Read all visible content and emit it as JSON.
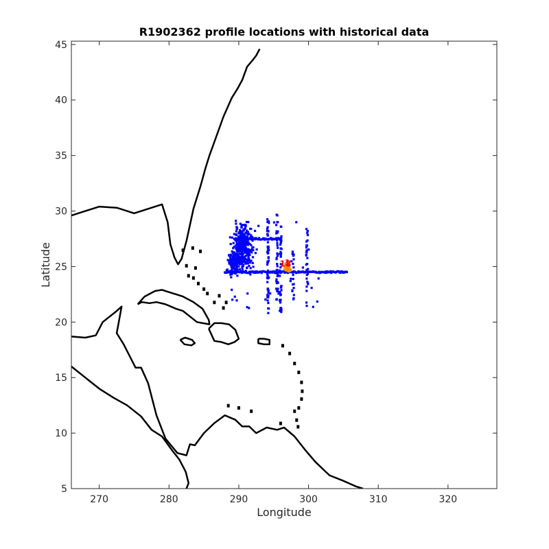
{
  "chart_data": {
    "type": "scatter",
    "title": "R1902362 profile locations with historical data",
    "xlabel": "Longitude",
    "ylabel": "Latitude",
    "xlim": [
      266,
      327
    ],
    "ylim": [
      5,
      45.3
    ],
    "xticks": [
      270,
      280,
      290,
      300,
      310,
      320
    ],
    "yticks": [
      5,
      10,
      15,
      20,
      25,
      30,
      35,
      40,
      45
    ],
    "grid": false,
    "colors": {
      "historical": "#0000ff",
      "float_profiles": "#ff8c00",
      "profile_labels": "#ff0000",
      "coastline": "#000000"
    },
    "profile_labels": [
      {
        "text": "18",
        "x": 296.7,
        "y": 25.0
      },
      {
        "text": "1",
        "x": 297.0,
        "y": 25.1
      }
    ],
    "float_profiles": {
      "x": [
        296.8,
        297.0,
        297.2,
        296.9
      ],
      "y": [
        24.8,
        25.0,
        24.7,
        25.2
      ]
    },
    "historical_series": [
      {
        "kind": "cluster",
        "cx": 290.6,
        "cy": 26.8,
        "sx": 1.0,
        "sy": 1.0,
        "n": 320
      },
      {
        "kind": "cluster",
        "cx": 289.4,
        "cy": 25.3,
        "sx": 0.7,
        "sy": 0.6,
        "n": 120
      },
      {
        "kind": "hline",
        "y": 24.5,
        "x0": 288.0,
        "x1": 305.5,
        "n": 150
      },
      {
        "kind": "hline",
        "y": 27.5,
        "x0": 290.0,
        "x1": 296.0,
        "n": 40
      },
      {
        "kind": "vline",
        "x": 294.2,
        "y0": 20.8,
        "y1": 29.5,
        "n": 60
      },
      {
        "kind": "vline",
        "x": 295.5,
        "y0": 22.0,
        "y1": 29.7,
        "n": 40
      },
      {
        "kind": "vline",
        "x": 296.0,
        "y0": 20.7,
        "y1": 29.0,
        "n": 40
      },
      {
        "kind": "vline",
        "x": 299.8,
        "y0": 21.2,
        "y1": 28.6,
        "n": 30
      },
      {
        "kind": "vline",
        "x": 297.8,
        "y0": 22.0,
        "y1": 26.5,
        "n": 20
      },
      {
        "kind": "scatter",
        "x0": 288.0,
        "x1": 302.0,
        "y0": 21.0,
        "y1": 29.0,
        "n": 30
      }
    ],
    "coastline": [
      {
        "name": "north-america-east",
        "lon": [
          266,
          268.5,
          270,
          272.5,
          275,
          277,
          279,
          279.8,
          280.2,
          280.8,
          281.3,
          281.8,
          282.5,
          283.5,
          284.5,
          285.2,
          285.8,
          286.6,
          287.8,
          289,
          289.8,
          290.5,
          291.2,
          292,
          292.5,
          293
        ],
        "lat": [
          29.6,
          30.1,
          30.4,
          30.3,
          29.8,
          30.2,
          30.6,
          29,
          27,
          25.8,
          25.2,
          25.7,
          27.3,
          30.2,
          32.2,
          33.8,
          35.0,
          36.4,
          38.5,
          40.2,
          41.0,
          41.8,
          43.0,
          43.6,
          44.0,
          44.6
        ]
      },
      {
        "name": "cuba",
        "lon": [
          275.5,
          276.5,
          278,
          279,
          280.5,
          282,
          283.5,
          284.8,
          285.7,
          285.8,
          284,
          283,
          282,
          281,
          279.5,
          278.2,
          277.2,
          276.1,
          275.5
        ],
        "lat": [
          21.6,
          22.3,
          22.8,
          22.9,
          22.6,
          22.3,
          21.8,
          21.2,
          20.2,
          19.8,
          20.0,
          20.5,
          21.0,
          21.2,
          21.6,
          21.8,
          21.7,
          21.8,
          21.6
        ]
      },
      {
        "name": "hispaniola",
        "lon": [
          285.7,
          286.5,
          287.5,
          288.6,
          289.5,
          290.0,
          289.4,
          288.5,
          287.5,
          286.5,
          285.7
        ],
        "lat": [
          19.4,
          19.9,
          19.9,
          19.8,
          19.3,
          18.5,
          18.2,
          18.0,
          18.2,
          18.3,
          19.4
        ]
      },
      {
        "name": "jamaica",
        "lon": [
          281.6,
          282.3,
          283.3,
          283.7,
          283.2,
          282.2,
          281.6
        ],
        "lat": [
          18.4,
          18.6,
          18.4,
          18.1,
          17.9,
          18.0,
          18.4
        ]
      },
      {
        "name": "puerto-rico",
        "lon": [
          292.8,
          293.6,
          294.4,
          294.4,
          293.6,
          292.8,
          292.8
        ],
        "lat": [
          18.5,
          18.5,
          18.4,
          18.0,
          18.0,
          18.1,
          18.5
        ]
      },
      {
        "name": "central-america-south-america",
        "lon": [
          266,
          268,
          269.5,
          270.5,
          272.5,
          273.2,
          272.5,
          273.5,
          275.2,
          276.0,
          277.0,
          278.2,
          279.5,
          281.2,
          282.5,
          283.0,
          283.7,
          285,
          286.5,
          288.0,
          289.5,
          290.5,
          291.5,
          292.5,
          294,
          295.5,
          296.5,
          298,
          299.5,
          301,
          303,
          305,
          306.8,
          307.8
        ],
        "lat": [
          18.7,
          18.6,
          18.8,
          20.0,
          21.0,
          21.4,
          19.0,
          18.0,
          15.9,
          15.9,
          14.5,
          11.6,
          9.5,
          8.2,
          8.0,
          9.0,
          8.9,
          10.0,
          10.9,
          11.6,
          11.2,
          10.6,
          10.6,
          10.0,
          10.5,
          10.3,
          10.5,
          9.7,
          8.5,
          7.4,
          6.2,
          5.7,
          5.2,
          5.0
        ]
      },
      {
        "name": "pacific-coast",
        "lon": [
          266,
          268,
          270,
          272,
          274,
          276,
          277.5,
          279,
          280.5,
          281.5,
          282.4,
          282.8,
          282.5
        ],
        "lat": [
          16.0,
          15.0,
          14.0,
          13.2,
          12.5,
          11.5,
          10.3,
          9.7,
          8.4,
          7.6,
          6.5,
          5.5,
          5.0
        ]
      },
      {
        "name": "lesser-antilles-and-bahamas",
        "lon": [],
        "lat": []
      }
    ]
  }
}
